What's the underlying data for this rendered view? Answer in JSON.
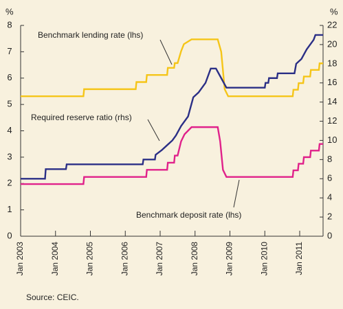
{
  "chart_data": {
    "type": "line",
    "y_label": "%",
    "y2_label": "%",
    "xlim": [
      2003,
      2011.67
    ],
    "xticks": [
      {
        "value": 2003,
        "label": "Jan 2003"
      },
      {
        "value": 2004,
        "label": "Jan 2004"
      },
      {
        "value": 2005,
        "label": "Jan 2005"
      },
      {
        "value": 2006,
        "label": "Jan 2006"
      },
      {
        "value": 2007,
        "label": "Jan 2007"
      },
      {
        "value": 2008,
        "label": "Jan 2008"
      },
      {
        "value": 2009,
        "label": "Jan 2009"
      },
      {
        "value": 2010,
        "label": "Jan 2010"
      },
      {
        "value": 2011,
        "label": "Jan 2011"
      }
    ],
    "ylim": [
      0,
      8
    ],
    "yticks": [
      0,
      1,
      2,
      3,
      4,
      5,
      6,
      7,
      8
    ],
    "y2lim": [
      0,
      22
    ],
    "y2ticks": [
      0,
      2,
      4,
      6,
      8,
      10,
      12,
      14,
      16,
      18,
      20,
      22
    ],
    "series": [
      {
        "name": "Benchmark lending rate (lhs)",
        "color": "#f5c518",
        "x": [
          2003.0,
          2004.8,
          2004.82,
          2006.3,
          2006.32,
          2006.6,
          2006.62,
          2007.2,
          2007.22,
          2007.4,
          2007.42,
          2007.5,
          2007.6,
          2007.68,
          2007.9,
          2008.65,
          2008.75,
          2008.85,
          2008.95,
          2010.8,
          2010.82,
          2010.95,
          2010.97,
          2011.1,
          2011.12,
          2011.3,
          2011.32,
          2011.55,
          2011.57,
          2011.67
        ],
        "values": [
          5.31,
          5.31,
          5.58,
          5.58,
          5.85,
          5.85,
          6.12,
          6.12,
          6.39,
          6.39,
          6.57,
          6.57,
          7.02,
          7.29,
          7.47,
          7.47,
          7.0,
          5.58,
          5.31,
          5.31,
          5.56,
          5.56,
          5.81,
          5.81,
          6.06,
          6.06,
          6.31,
          6.31,
          6.56,
          6.56
        ]
      },
      {
        "name": "Required reserve ratio (rhs)",
        "color": "#2b2f86",
        "axis": "y2",
        "x": [
          2003.0,
          2003.7,
          2003.72,
          2004.3,
          2004.32,
          2006.5,
          2006.52,
          2006.85,
          2006.87,
          2007.05,
          2007.2,
          2007.35,
          2007.45,
          2007.6,
          2007.8,
          2007.95,
          2008.1,
          2008.3,
          2008.45,
          2008.6,
          2008.75,
          2008.9,
          2010.0,
          2010.02,
          2010.1,
          2010.12,
          2010.35,
          2010.37,
          2010.85,
          2010.9,
          2011.05,
          2011.2,
          2011.4,
          2011.45,
          2011.67
        ],
        "values": [
          6,
          6,
          7,
          7,
          7.5,
          7.5,
          8,
          8,
          8.5,
          9,
          9.5,
          10,
          10.5,
          11.5,
          12.5,
          14.5,
          15,
          16,
          17.5,
          17.5,
          16.5,
          15.5,
          15.5,
          16,
          16,
          16.5,
          16.5,
          17,
          17,
          18,
          18.5,
          19.5,
          20.5,
          21,
          21
        ]
      },
      {
        "name": "Benchmark deposit rate (lhs)",
        "color": "#e0218a",
        "x": [
          2003.0,
          2004.8,
          2004.82,
          2006.6,
          2006.62,
          2007.2,
          2007.22,
          2007.4,
          2007.42,
          2007.5,
          2007.6,
          2007.7,
          2007.9,
          2008.65,
          2008.72,
          2008.8,
          2008.9,
          2010.8,
          2010.82,
          2010.95,
          2010.97,
          2011.1,
          2011.12,
          2011.3,
          2011.32,
          2011.55,
          2011.57,
          2011.67
        ],
        "values": [
          1.98,
          1.98,
          2.25,
          2.25,
          2.52,
          2.52,
          2.79,
          2.79,
          3.06,
          3.06,
          3.6,
          3.87,
          4.14,
          4.14,
          3.6,
          2.52,
          2.25,
          2.25,
          2.5,
          2.5,
          2.75,
          2.75,
          3.0,
          3.0,
          3.25,
          3.25,
          3.5,
          3.5
        ]
      }
    ],
    "source": "Source: CEIC."
  }
}
